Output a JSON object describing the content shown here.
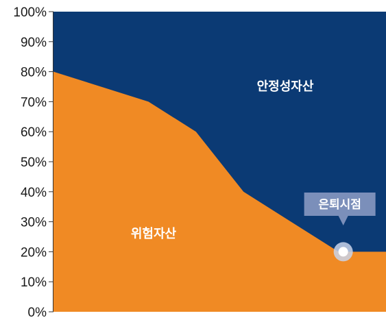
{
  "chart_data": {
    "type": "area",
    "stacked": true,
    "x": [
      0,
      1,
      2,
      3,
      4,
      5,
      6
    ],
    "y_ticks": [
      "0%",
      "10%",
      "20%",
      "30%",
      "40%",
      "50%",
      "60%",
      "70%",
      "80%",
      "90%",
      "100%"
    ],
    "ylim": [
      0,
      100
    ],
    "xlim": [
      0,
      7
    ],
    "grid": false,
    "series": [
      {
        "name": "위험자산",
        "values": [
          80,
          70,
          60,
          40,
          30,
          20,
          20,
          20
        ],
        "x": [
          0,
          2,
          3,
          4,
          5,
          6,
          6.1,
          7
        ],
        "color": "#f08a24"
      },
      {
        "name": "안정성자산",
        "color": "#0b3a74"
      }
    ],
    "annotations": [
      {
        "text": "은퇴시점",
        "x": 6.1,
        "y": 20
      }
    ]
  }
}
